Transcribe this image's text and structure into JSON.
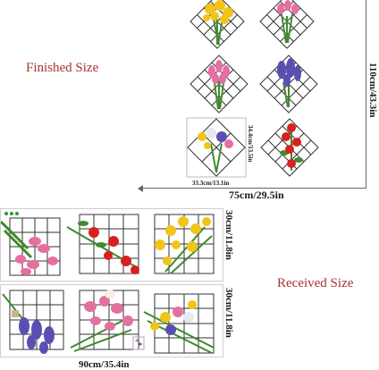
{
  "labels": {
    "finished_size": "Finished Size",
    "received_size": "Received Size"
  },
  "finished": {
    "height_total": "110cm/43.3in",
    "width_total": "75cm/29.5in",
    "tile_height": "34.4cm/13.5in",
    "tile_width": "33.3cm/13.1in"
  },
  "received": {
    "sheet_height_top": "30cm/11.8in",
    "sheet_height_bottom": "30cm/11.8in",
    "sheet_width": "90cm/35.4in"
  },
  "colors": {
    "label_red": "#a8322e",
    "grid": "#333333",
    "leaf": "#3f8a2e",
    "yellow": "#f2c418",
    "pink": "#e56fa0",
    "red": "#d8201f",
    "purple": "#5a4fb0"
  }
}
